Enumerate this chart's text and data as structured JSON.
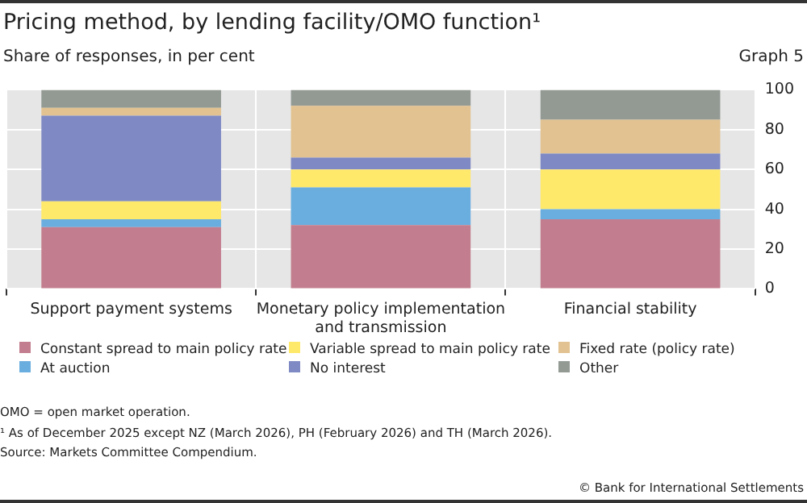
{
  "chart_data": {
    "type": "bar",
    "stacked": true,
    "title": "Pricing method, by lending facility/OMO function¹",
    "subtitle": "Share of responses, in per cent",
    "categories": [
      "Support payment systems",
      "Monetary policy implementation and transmission",
      "Financial stability"
    ],
    "series": [
      {
        "name": "Constant spread to main policy rate",
        "color": "#c27e8e",
        "values": [
          31,
          32,
          35
        ]
      },
      {
        "name": "At auction",
        "color": "#6aaee0",
        "values": [
          4,
          19,
          5
        ]
      },
      {
        "name": "Variable spread to main policy rate",
        "color": "#ffe96a",
        "values": [
          9,
          9,
          20
        ]
      },
      {
        "name": "No interest",
        "color": "#7f8ac4",
        "values": [
          43,
          6,
          8
        ]
      },
      {
        "name": "Fixed rate (policy rate)",
        "color": "#e2c290",
        "values": [
          4,
          26,
          17
        ]
      },
      {
        "name": "Other",
        "color": "#939a94",
        "values": [
          9,
          8,
          15
        ]
      }
    ],
    "ylim": [
      0,
      100
    ],
    "yticks": [
      0,
      20,
      40,
      60,
      80,
      100
    ],
    "grid": true,
    "legend": "bottom",
    "annotations": [
      "Graph 5",
      "OMO = open market operation.",
      "¹  As of December 2025 except NZ (March 2026), PH (February 2026) and TH (March 2026).",
      "Source: Markets Committee Compendium.",
      "© Bank for International Settlements"
    ]
  }
}
